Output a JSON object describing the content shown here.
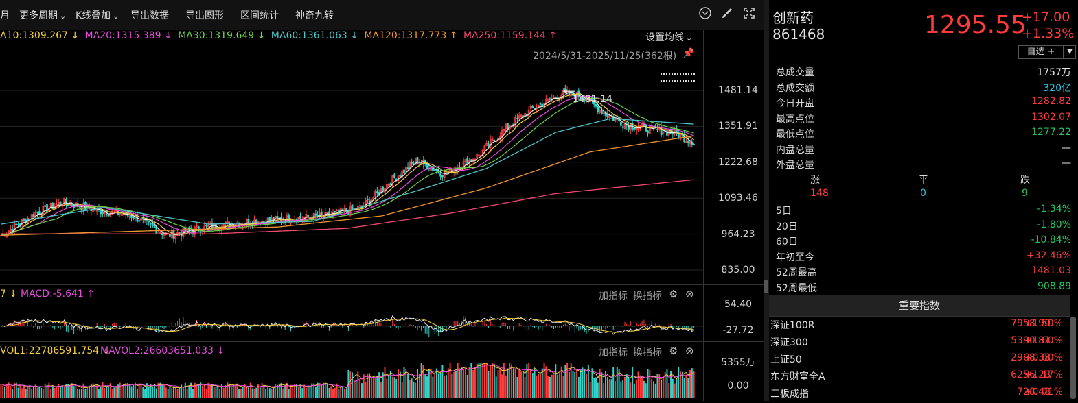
{
  "toolbar": {
    "items": [
      "月",
      "更多周期",
      "K线叠加",
      "导出数据",
      "导出图形",
      "区间统计",
      "神奇九转"
    ],
    "icons": [
      "chevron-circle-icon",
      "brush-icon",
      "expand-icon"
    ]
  },
  "ma_legend": [
    {
      "text": "A10:1309.267 ↓",
      "color": "#f5d03b"
    },
    {
      "text": "MA20:1315.389 ↓",
      "color": "#e64ddc"
    },
    {
      "text": "MA30:1319.649 ↓",
      "color": "#6ed24b"
    },
    {
      "text": "MA60:1361.063 ↓",
      "color": "#4ec3c8"
    },
    {
      "text": "MA120:1317.773 ↑",
      "color": "#f0962e"
    },
    {
      "text": "MA250:1159.144 ↑",
      "color": "#f04a6e"
    }
  ],
  "ma_settings": "设置均线",
  "date_range": "2024/5/31-2025/11/25(362根)",
  "price_axis": [
    "1481.14",
    "1351.91",
    "1222.68",
    "1093.46",
    "964.23",
    "835.00"
  ],
  "peak_label": "1481.14",
  "macd": {
    "legend_prefix": "7 ↓",
    "label": "MACD:-5.641 ↑",
    "axis": [
      "54.40",
      "-27.72"
    ]
  },
  "vol": {
    "label1": "VOL1:22786591.754 ↓",
    "label2": "MAVOL2:26603651.033 ↓",
    "axis": [
      "5355万",
      "0.00"
    ]
  },
  "indicator_buttons": {
    "add": "加指标",
    "switch": "换指标"
  },
  "stock": {
    "name": "创新药",
    "code": "861468",
    "price": "1295.55",
    "change": "+17.00",
    "change_pct": "+1.33%",
    "watch_label": "自选 +"
  },
  "stats": [
    {
      "k": "总成交量",
      "v": "1757万",
      "c": "white"
    },
    {
      "k": "总成交额",
      "v": "320亿",
      "c": "cyan"
    },
    {
      "k": "今日开盘",
      "v": "1282.82",
      "c": "red"
    },
    {
      "k": "最高点位",
      "v": "1302.07",
      "c": "red"
    },
    {
      "k": "最低点位",
      "v": "1277.22",
      "c": "green"
    },
    {
      "k": "内盘总量",
      "v": "—",
      "c": "white"
    },
    {
      "k": "外盘总量",
      "v": "—",
      "c": "white"
    }
  ],
  "breadth": {
    "up_label": "涨",
    "flat_label": "平",
    "down_label": "跌",
    "up": "148",
    "flat": "0",
    "down": "9"
  },
  "periods": [
    {
      "k": "5日",
      "v": "-1.34%",
      "c": "green"
    },
    {
      "k": "20日",
      "v": "-1.80%",
      "c": "green"
    },
    {
      "k": "60日",
      "v": "-10.84%",
      "c": "green"
    },
    {
      "k": "年初至今",
      "v": "+32.46%",
      "c": "red"
    },
    {
      "k": "52周最高",
      "v": "1481.03",
      "c": "red"
    },
    {
      "k": "52周最低",
      "v": "908.89",
      "c": "green"
    }
  ],
  "index_header": "重要指数",
  "indices": [
    {
      "n": "深证100R",
      "p": "7958.90",
      "c": "+1.50%"
    },
    {
      "n": "深证300",
      "p": "5390.81",
      "c": "+1.60%"
    },
    {
      "n": "上证50",
      "p": "2968.38",
      "c": "+0.60%"
    },
    {
      "n": "东方财富全A",
      "p": "6256.28",
      "c": "+1.17%"
    },
    {
      "n": "三板成指",
      "p": "728.48",
      "c": "+0.01%"
    }
  ],
  "chart_data": {
    "type": "candlestick",
    "ylim": [
      835.0,
      1481.14
    ],
    "price_anchors": [
      [
        0,
        960
      ],
      [
        0.05,
        1040
      ],
      [
        0.09,
        1080
      ],
      [
        0.14,
        1050
      ],
      [
        0.19,
        1030
      ],
      [
        0.24,
        960
      ],
      [
        0.3,
        990
      ],
      [
        0.36,
        1010
      ],
      [
        0.42,
        1020
      ],
      [
        0.47,
        1030
      ],
      [
        0.52,
        1060
      ],
      [
        0.56,
        1150
      ],
      [
        0.6,
        1230
      ],
      [
        0.64,
        1180
      ],
      [
        0.69,
        1250
      ],
      [
        0.73,
        1350
      ],
      [
        0.77,
        1420
      ],
      [
        0.81,
        1470
      ],
      [
        0.84,
        1460
      ],
      [
        0.87,
        1400
      ],
      [
        0.9,
        1360
      ],
      [
        0.94,
        1340
      ],
      [
        0.97,
        1330
      ],
      [
        1.0,
        1295
      ]
    ],
    "ma_anchors": {
      "ma60": [
        [
          0,
          1000
        ],
        [
          0.15,
          1060
        ],
        [
          0.3,
          1000
        ],
        [
          0.45,
          1010
        ],
        [
          0.6,
          1120
        ],
        [
          0.7,
          1200
        ],
        [
          0.8,
          1330
        ],
        [
          0.88,
          1380
        ],
        [
          1.0,
          1360
        ]
      ],
      "ma120": [
        [
          0,
          960
        ],
        [
          0.2,
          975
        ],
        [
          0.4,
          990
        ],
        [
          0.55,
          1030
        ],
        [
          0.7,
          1130
        ],
        [
          0.85,
          1260
        ],
        [
          1.0,
          1318
        ]
      ],
      "ma250": [
        [
          0,
          965
        ],
        [
          0.3,
          965
        ],
        [
          0.5,
          985
        ],
        [
          0.65,
          1040
        ],
        [
          0.8,
          1110
        ],
        [
          1.0,
          1160
        ]
      ]
    }
  }
}
